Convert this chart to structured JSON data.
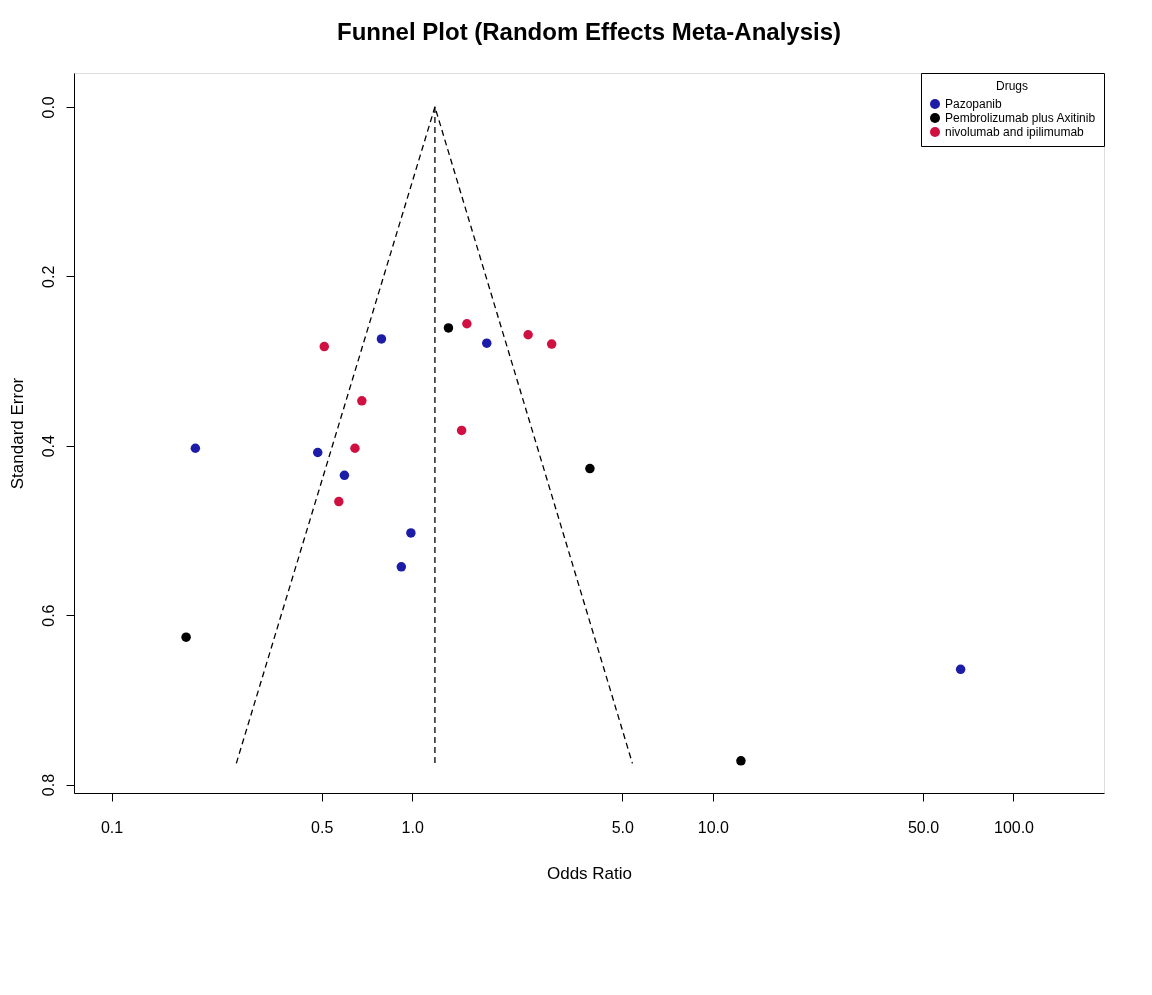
{
  "chart_data": {
    "type": "scatter",
    "title": "Funnel Plot (Random Effects Meta-Analysis)",
    "xlabel": "Odds Ratio",
    "ylabel": "Standard Error",
    "legend_title": "Drugs",
    "legend": "top right",
    "log": "x",
    "grid": false,
    "xlim": [
      0.075,
      200
    ],
    "ylim": [
      0.81,
      -0.04
    ],
    "xticks": [
      {
        "value": 0.1,
        "label": "0.1"
      },
      {
        "value": 0.5,
        "label": "0.5"
      },
      {
        "value": 1,
        "label": "1.0"
      },
      {
        "value": 5,
        "label": "5.0"
      },
      {
        "value": 10,
        "label": "10.0"
      },
      {
        "value": 50,
        "label": "50.0"
      },
      {
        "value": 100,
        "label": "100.0"
      }
    ],
    "yticks": [
      {
        "value": 0,
        "label": "0.0"
      },
      {
        "value": 0.2,
        "label": "0.2"
      },
      {
        "value": 0.4,
        "label": "0.4"
      },
      {
        "value": 0.6,
        "label": "0.6"
      },
      {
        "value": 0.8,
        "label": "0.8"
      }
    ],
    "series": [
      {
        "name": "Pazopanib",
        "color": "#1c1ca8",
        "type": "scatter",
        "marker": "circle",
        "x": [
          0.19,
          0.79,
          1.77,
          0.485,
          0.595,
          0.99,
          0.92,
          66.7
        ],
        "values": [
          0.403,
          0.274,
          0.279,
          0.408,
          0.435,
          0.503,
          0.543,
          0.664
        ]
      },
      {
        "name": "Pembrolizumab plus Axitinib",
        "color": "#000000",
        "type": "scatter",
        "marker": "circle",
        "x": [
          1.32,
          3.9,
          0.177,
          12.4
        ],
        "values": [
          0.261,
          0.427,
          0.626,
          0.772
        ]
      },
      {
        "name": "nivolumab and ipilimumab",
        "color": "#d01040",
        "type": "scatter",
        "marker": "circle",
        "x": [
          0.51,
          1.52,
          2.43,
          2.91,
          0.68,
          1.46,
          0.645,
          0.57
        ],
        "values": [
          0.283,
          0.256,
          0.269,
          0.28,
          0.347,
          0.382,
          0.403,
          0.466
        ]
      },
      {
        "color": "#000000",
        "type": "line",
        "marker": "none",
        "line_style": "dashed",
        "x": [
          0.26,
          1.19,
          5.4
        ],
        "values": [
          0.775,
          0,
          0.775
        ]
      },
      {
        "color": "#000000",
        "type": "line",
        "marker": "none",
        "line_style": "dashed",
        "x": [
          1.19,
          1.19
        ],
        "values": [
          0,
          0.775
        ]
      }
    ]
  }
}
